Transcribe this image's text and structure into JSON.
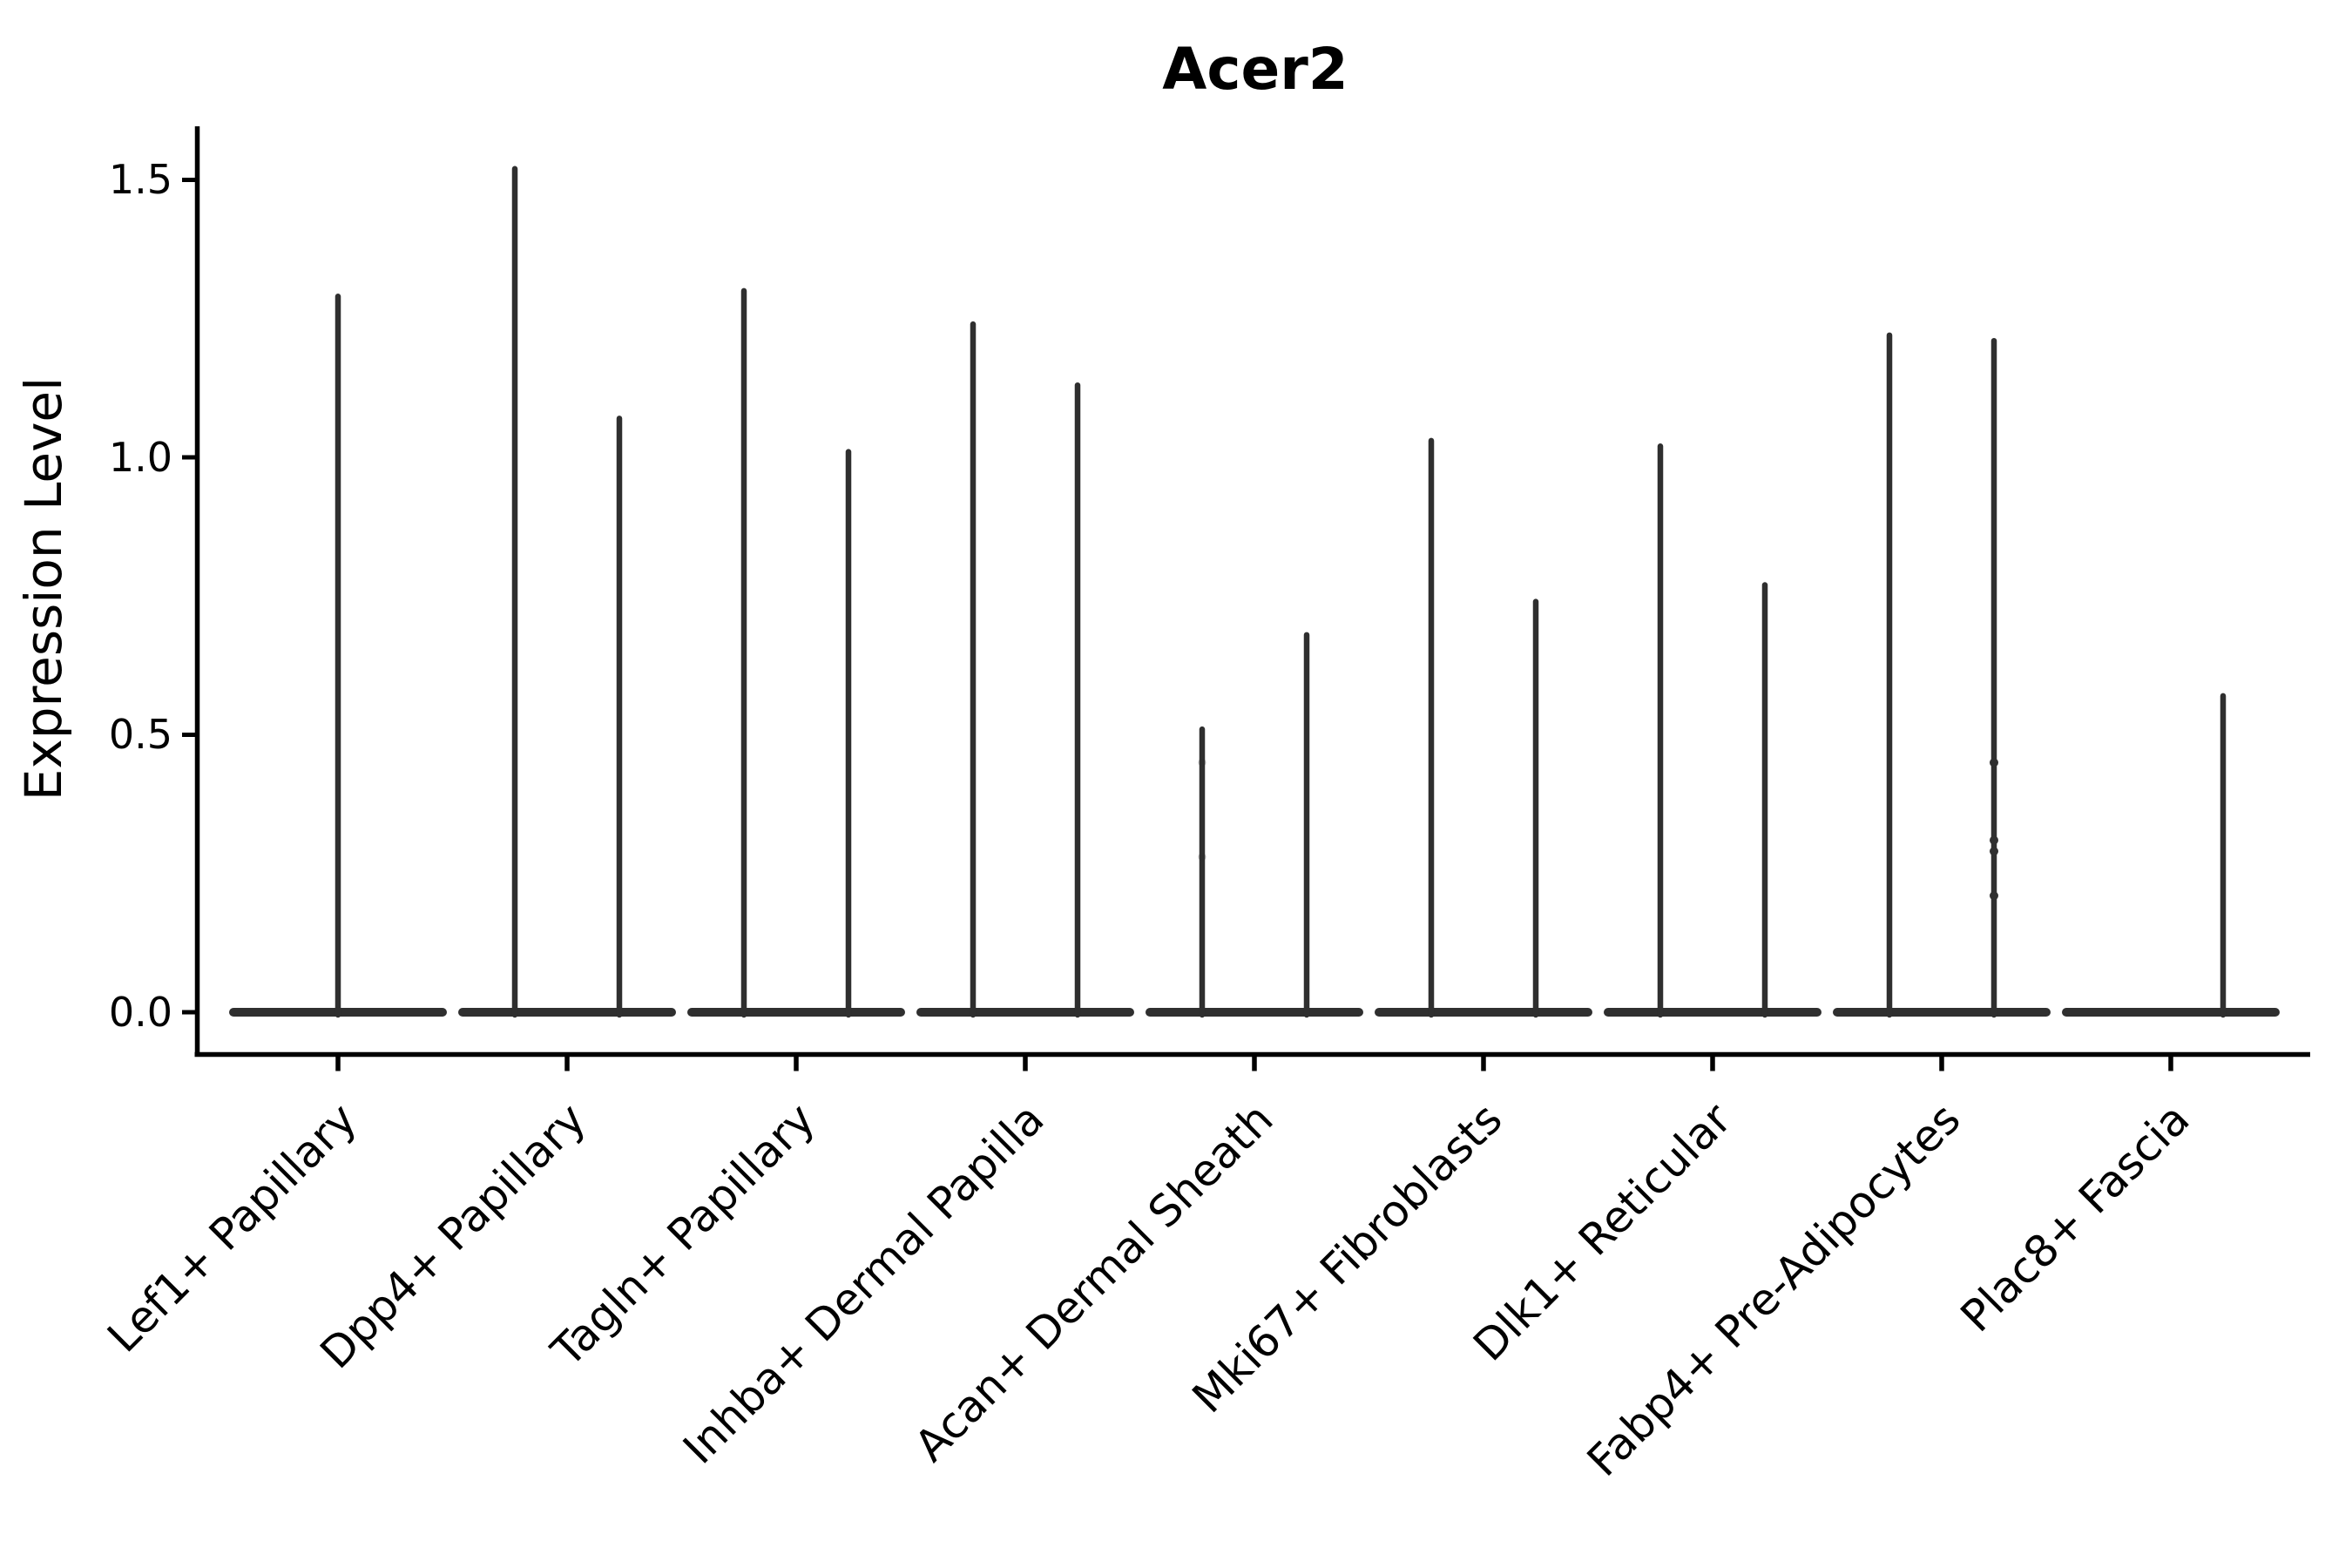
{
  "page": {
    "background": "#ffffff"
  },
  "chart_data": {
    "type": "violin",
    "title": "Acer2",
    "ylabel": "Expression Level",
    "xlabel": "",
    "grid": false,
    "legend": "none",
    "axis_color": "#000000",
    "violin_color": "#2f2f2f",
    "ylim": [
      -0.08,
      1.6
    ],
    "ytick_values": [
      1.5,
      1.0,
      0.5,
      0.0
    ],
    "ytick_labels": [
      "1.5",
      "1.0",
      "0.5",
      "0.0"
    ],
    "categories": [
      "Lef1+ Papillary",
      "Dpp4+ Papillary",
      "Tagln+ Papillary",
      "Inhba+ Dermal Papilla",
      "Acan+ Dermal Sheath",
      "Mki67+ Fibroblasts",
      "Dlk1+ Reticular",
      "Fabp4+ Pre-Adipocytes",
      "Plac8+ Fascia"
    ],
    "violins": [
      {
        "category": "Lef1+ Papillary",
        "spikes": [
          {
            "side": "center",
            "max": 1.29
          }
        ]
      },
      {
        "category": "Dpp4+ Papillary",
        "spikes": [
          {
            "side": "left",
            "max": 1.52
          },
          {
            "side": "right",
            "max": 1.07
          }
        ]
      },
      {
        "category": "Tagln+ Papillary",
        "spikes": [
          {
            "side": "left",
            "max": 1.3
          },
          {
            "side": "right",
            "max": 1.01
          }
        ]
      },
      {
        "category": "Inhba+ Dermal Papilla",
        "spikes": [
          {
            "side": "left",
            "max": 1.24
          },
          {
            "side": "right",
            "max": 1.13
          }
        ]
      },
      {
        "category": "Acan+ Dermal Sheath",
        "spikes": [
          {
            "side": "left",
            "max": 0.51,
            "faint_points": [
              0.45,
              0.28
            ]
          },
          {
            "side": "right",
            "max": 0.68
          }
        ]
      },
      {
        "category": "Mki67+ Fibroblasts",
        "spikes": [
          {
            "side": "left",
            "max": 1.03
          },
          {
            "side": "right",
            "max": 0.74
          }
        ]
      },
      {
        "category": "Dlk1+ Reticular",
        "spikes": [
          {
            "side": "left",
            "max": 1.02
          },
          {
            "side": "right",
            "max": 0.77
          }
        ]
      },
      {
        "category": "Fabp4+ Pre-Adipocytes",
        "spikes": [
          {
            "side": "left",
            "max": 1.22
          },
          {
            "side": "right",
            "max": 1.21,
            "points": [
              0.45,
              0.31,
              0.29,
              0.21
            ]
          }
        ]
      },
      {
        "category": "Plac8+ Fascia",
        "spikes": [
          {
            "side": "right",
            "max": 0.57
          }
        ]
      }
    ],
    "baseline_value": 0.0
  }
}
